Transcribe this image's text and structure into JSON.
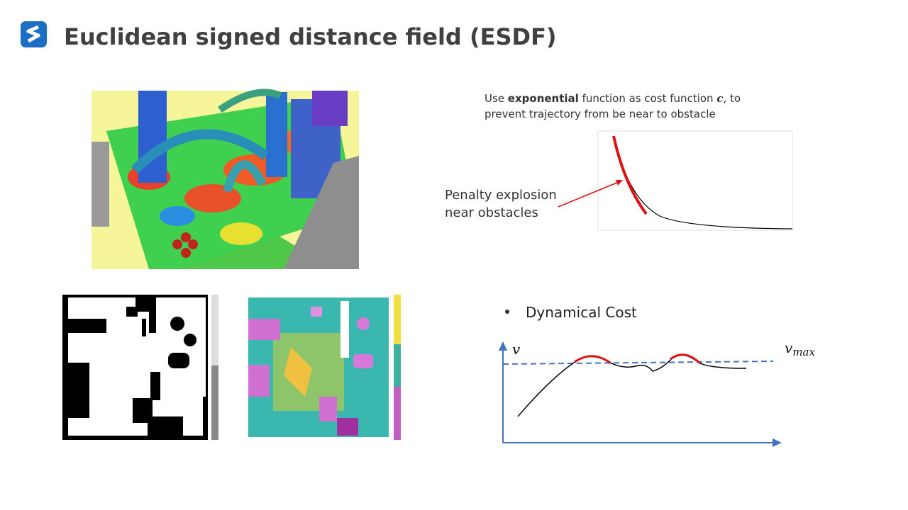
{
  "header": {
    "title": "Euclidean signed distance field (ESDF)"
  },
  "cost_note": {
    "line1": [
      "Use ",
      "exponential",
      " function as cost function ",
      "c",
      ",  to"
    ],
    "line2": "prevent trajectory from be near to obstacle"
  },
  "penalty_label": [
    "Penalty explosion",
    "near obstacles"
  ],
  "dynamical": {
    "bullet": "Dynamical Cost",
    "v_axis": "v",
    "vmax_base": "v",
    "vmax_sub": "max"
  }
}
